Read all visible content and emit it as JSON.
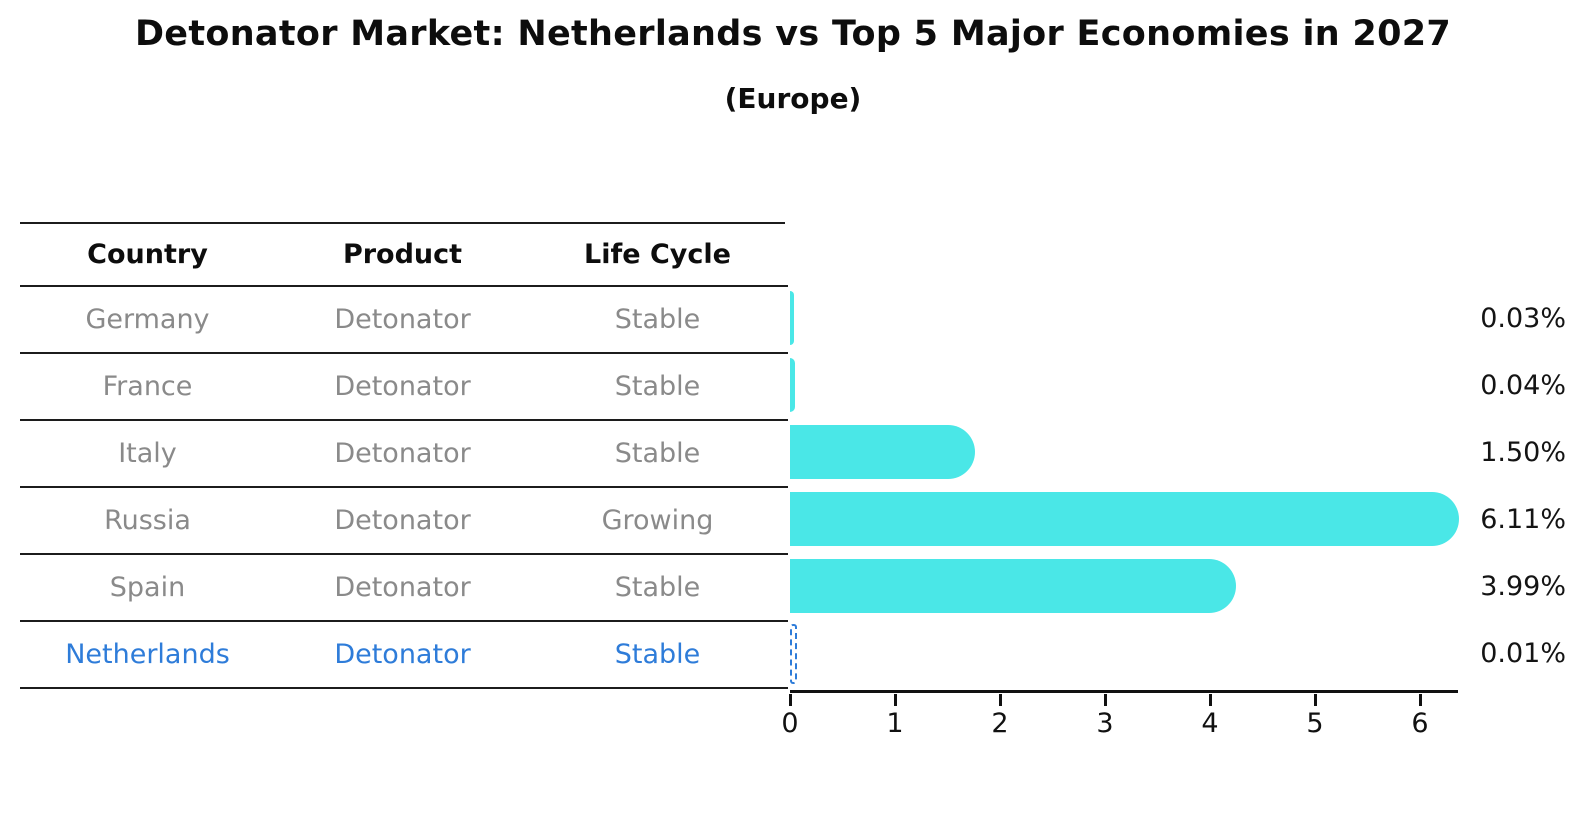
{
  "header": {
    "title": "Detonator Market: Netherlands vs Top 5 Major Economies in 2027",
    "subtitle": "(Europe)"
  },
  "table": {
    "headers": [
      "Country",
      "Product",
      "Life Cycle"
    ],
    "rows": [
      {
        "country": "Germany",
        "product": "Detonator",
        "life_cycle": "Stable",
        "highlight": false
      },
      {
        "country": "France",
        "product": "Detonator",
        "life_cycle": "Stable",
        "highlight": false
      },
      {
        "country": "Italy",
        "product": "Detonator",
        "life_cycle": "Stable",
        "highlight": false
      },
      {
        "country": "Russia",
        "product": "Detonator",
        "life_cycle": "Growing",
        "highlight": false
      },
      {
        "country": "Spain",
        "product": "Detonator",
        "life_cycle": "Stable",
        "highlight": false
      },
      {
        "country": "Netherlands",
        "product": "Detonator",
        "life_cycle": "Stable",
        "highlight": true
      }
    ]
  },
  "chart_data": {
    "type": "bar",
    "orientation": "horizontal",
    "title": "Detonator Market: Netherlands vs Top 5 Major Economies in 2027",
    "subtitle": "(Europe)",
    "categories": [
      "Germany",
      "France",
      "Italy",
      "Russia",
      "Spain",
      "Netherlands"
    ],
    "values": [
      0.03,
      0.04,
      1.5,
      6.11,
      3.99,
      0.01
    ],
    "value_labels": [
      "0.03%",
      "0.04%",
      "1.50%",
      "6.11%",
      "3.99%",
      "0.01%"
    ],
    "x_ticks": [
      "0",
      "1",
      "2",
      "3",
      "4",
      "5",
      "6"
    ],
    "xlim": [
      0,
      6.36
    ],
    "xlabel": "",
    "ylabel": "",
    "grid": false,
    "legend": false,
    "bar_color": "#4AE7E7",
    "highlight_index": 5,
    "highlight_style": "dashed-outline",
    "highlight_color": "#2E7CD9"
  },
  "colors": {
    "background": "#FFFFFF",
    "bar": "#4AE7E7",
    "highlight_blue": "#2E7CD9",
    "table_text_gray": "#8A8A8A",
    "heading_black": "#0D0D0D",
    "line_black": "#1C1C1C"
  }
}
